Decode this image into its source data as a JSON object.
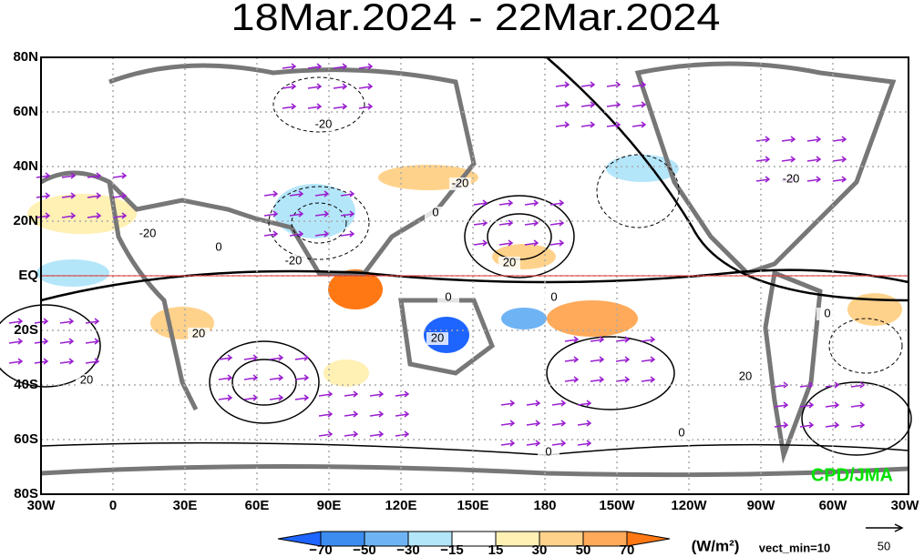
{
  "title": "18Mar.2024 - 22Mar.2024",
  "lat_labels": [
    "80N",
    "60N",
    "40N",
    "20N",
    "EQ",
    "20S",
    "40S",
    "60S",
    "80S"
  ],
  "lon_labels": [
    "30W",
    "0",
    "30E",
    "60E",
    "90E",
    "120E",
    "150E",
    "180",
    "150W",
    "120W",
    "90W",
    "60W",
    "30W"
  ],
  "colorbar": {
    "labels": [
      "−70",
      "−50",
      "−30",
      "−15",
      "15",
      "30",
      "50",
      "70"
    ],
    "units": "(W/m²)"
  },
  "vector_note": "vect_min=10",
  "vector_scale": "50",
  "credit": "CPD/JMA",
  "contour_labels": [
    "-20",
    "-20",
    "-20",
    "-20",
    "20",
    "0",
    "0",
    "0",
    "0",
    "20",
    "20",
    "20",
    "0",
    "0",
    "0",
    "-20",
    "20"
  ]
}
